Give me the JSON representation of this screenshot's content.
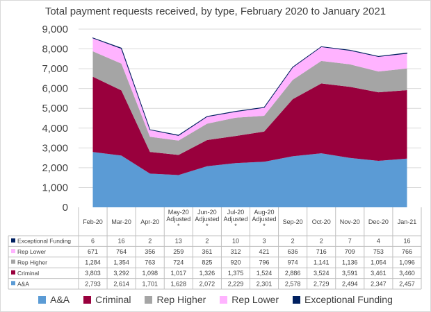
{
  "chart_data": {
    "type": "area",
    "stacked": true,
    "title": "Total payment requests received, by type, February 2020 to January 2021",
    "categories": [
      "Feb-20",
      "Mar-20",
      "Apr-20",
      "May-20 Adjusted *",
      "Jun-20 Adjusted *",
      "Jul-20 Adjusted *",
      "Aug-20 Adjusted *",
      "Sep-20",
      "Oct-20",
      "Nov-20",
      "Dec-20",
      "Jan-21"
    ],
    "category_lines": [
      [
        "Feb-20"
      ],
      [
        "Mar-20"
      ],
      [
        "Apr-20"
      ],
      [
        "May-20",
        "Adjusted",
        "*"
      ],
      [
        "Jun-20",
        "Adjusted",
        "*"
      ],
      [
        "Jul-20",
        "Adjusted",
        "*"
      ],
      [
        "Aug-20",
        "Adjusted",
        "*"
      ],
      [
        "Sep-20"
      ],
      [
        "Oct-20"
      ],
      [
        "Nov-20"
      ],
      [
        "Dec-20"
      ],
      [
        "Jan-21"
      ]
    ],
    "ylim": [
      0,
      9000
    ],
    "yticks": [
      "0",
      "1,000",
      "2,000",
      "3,000",
      "4,000",
      "5,000",
      "6,000",
      "7,000",
      "8,000",
      "9,000"
    ],
    "grid": true,
    "legend_position": "bottom",
    "series": [
      {
        "name": "A&A",
        "color": "#5b9bd5",
        "values": [
          2793,
          2614,
          1701,
          1628,
          2072,
          2229,
          2301,
          2578,
          2729,
          2494,
          2347,
          2457
        ],
        "labels": [
          "2,793",
          "2,614",
          "1,701",
          "1,628",
          "2,072",
          "2,229",
          "2,301",
          "2,578",
          "2,729",
          "2,494",
          "2,347",
          "2,457"
        ]
      },
      {
        "name": "Criminal",
        "color": "#99003d",
        "values": [
          3803,
          3292,
          1098,
          1017,
          1326,
          1375,
          1524,
          2886,
          3524,
          3591,
          3461,
          3460
        ],
        "labels": [
          "3,803",
          "3,292",
          "1,098",
          "1,017",
          "1,326",
          "1,375",
          "1,524",
          "2,886",
          "3,524",
          "3,591",
          "3,461",
          "3,460"
        ]
      },
      {
        "name": "Rep Higher",
        "color": "#a5a5a5",
        "values": [
          1284,
          1354,
          763,
          724,
          825,
          920,
          796,
          974,
          1141,
          1136,
          1054,
          1096
        ],
        "labels": [
          "1,284",
          "1,354",
          "763",
          "724",
          "825",
          "920",
          "796",
          "974",
          "1,141",
          "1,136",
          "1,054",
          "1,096"
        ]
      },
      {
        "name": "Rep Lower",
        "color": "#ffb3ff",
        "values": [
          671,
          764,
          356,
          259,
          361,
          312,
          421,
          636,
          716,
          709,
          753,
          766
        ],
        "labels": [
          "671",
          "764",
          "356",
          "259",
          "361",
          "312",
          "421",
          "636",
          "716",
          "709",
          "753",
          "766"
        ]
      },
      {
        "name": "Exceptional Funding",
        "color": "#002060",
        "values": [
          6,
          16,
          2,
          13,
          2,
          10,
          3,
          2,
          2,
          7,
          4,
          16
        ],
        "labels": [
          "6",
          "16",
          "2",
          "13",
          "2",
          "10",
          "3",
          "2",
          "2",
          "7",
          "4",
          "16"
        ]
      }
    ]
  }
}
